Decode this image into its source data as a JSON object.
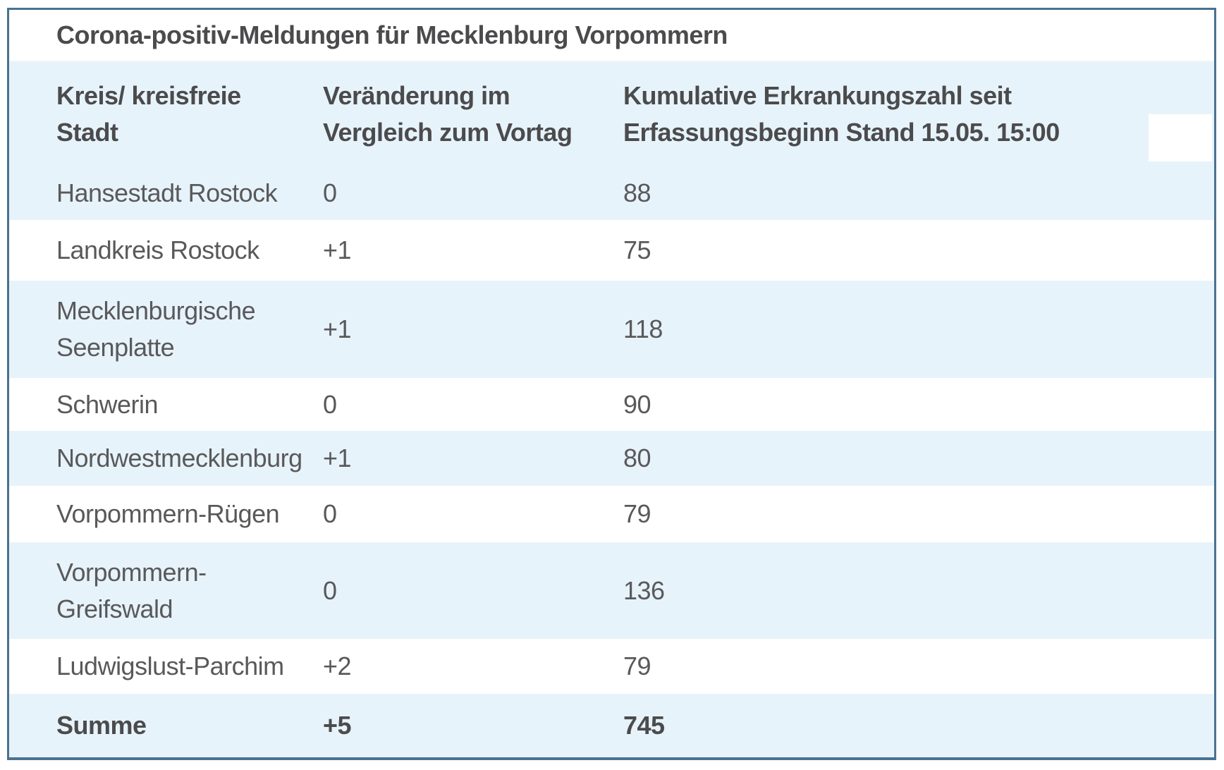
{
  "chart_data": {
    "type": "table",
    "title": "Corona-positiv-Meldungen für Mecklenburg Vorpommern",
    "columns": [
      "Kreis/ kreisfreie Stadt",
      "Veränderung im\nVergleich zum Vortag",
      "Kumulative Erkrankungszahl seit\nErfassungsbeginn Stand 15.05. 15:00"
    ],
    "rows": [
      {
        "name": "Hansestadt Rostock",
        "change": "0",
        "cumulative": "88"
      },
      {
        "name": "Landkreis Rostock",
        "change": "+1",
        "cumulative": "75"
      },
      {
        "name": "Mecklenburgische\nSeenplatte",
        "change": "+1",
        "cumulative": "118"
      },
      {
        "name": "Schwerin",
        "change": "0",
        "cumulative": "90"
      },
      {
        "name": "Nordwestmecklenburg",
        "change": "+1",
        "cumulative": "80"
      },
      {
        "name": "Vorpommern-Rügen",
        "change": "0",
        "cumulative": "79"
      },
      {
        "name": "Vorpommern-\nGreifswald",
        "change": "0",
        "cumulative": "136"
      },
      {
        "name": "Ludwigslust-Parchim",
        "change": "+2",
        "cumulative": "79"
      },
      {
        "name": "Summe",
        "change": "+5",
        "cumulative": "745"
      }
    ],
    "total_row": {
      "name": "Summe",
      "change": "+5",
      "cumulative": "745"
    },
    "stand": "15.05. 15:00",
    "layout": {
      "stripes": "alternating",
      "header_background": "stripe_blue",
      "grid": "off"
    }
  },
  "colors": {
    "stripe_blue": "#e7f3fa",
    "frame_border": "#4a7290",
    "text": "#59595b",
    "bold_text": "#4b4b4d"
  }
}
